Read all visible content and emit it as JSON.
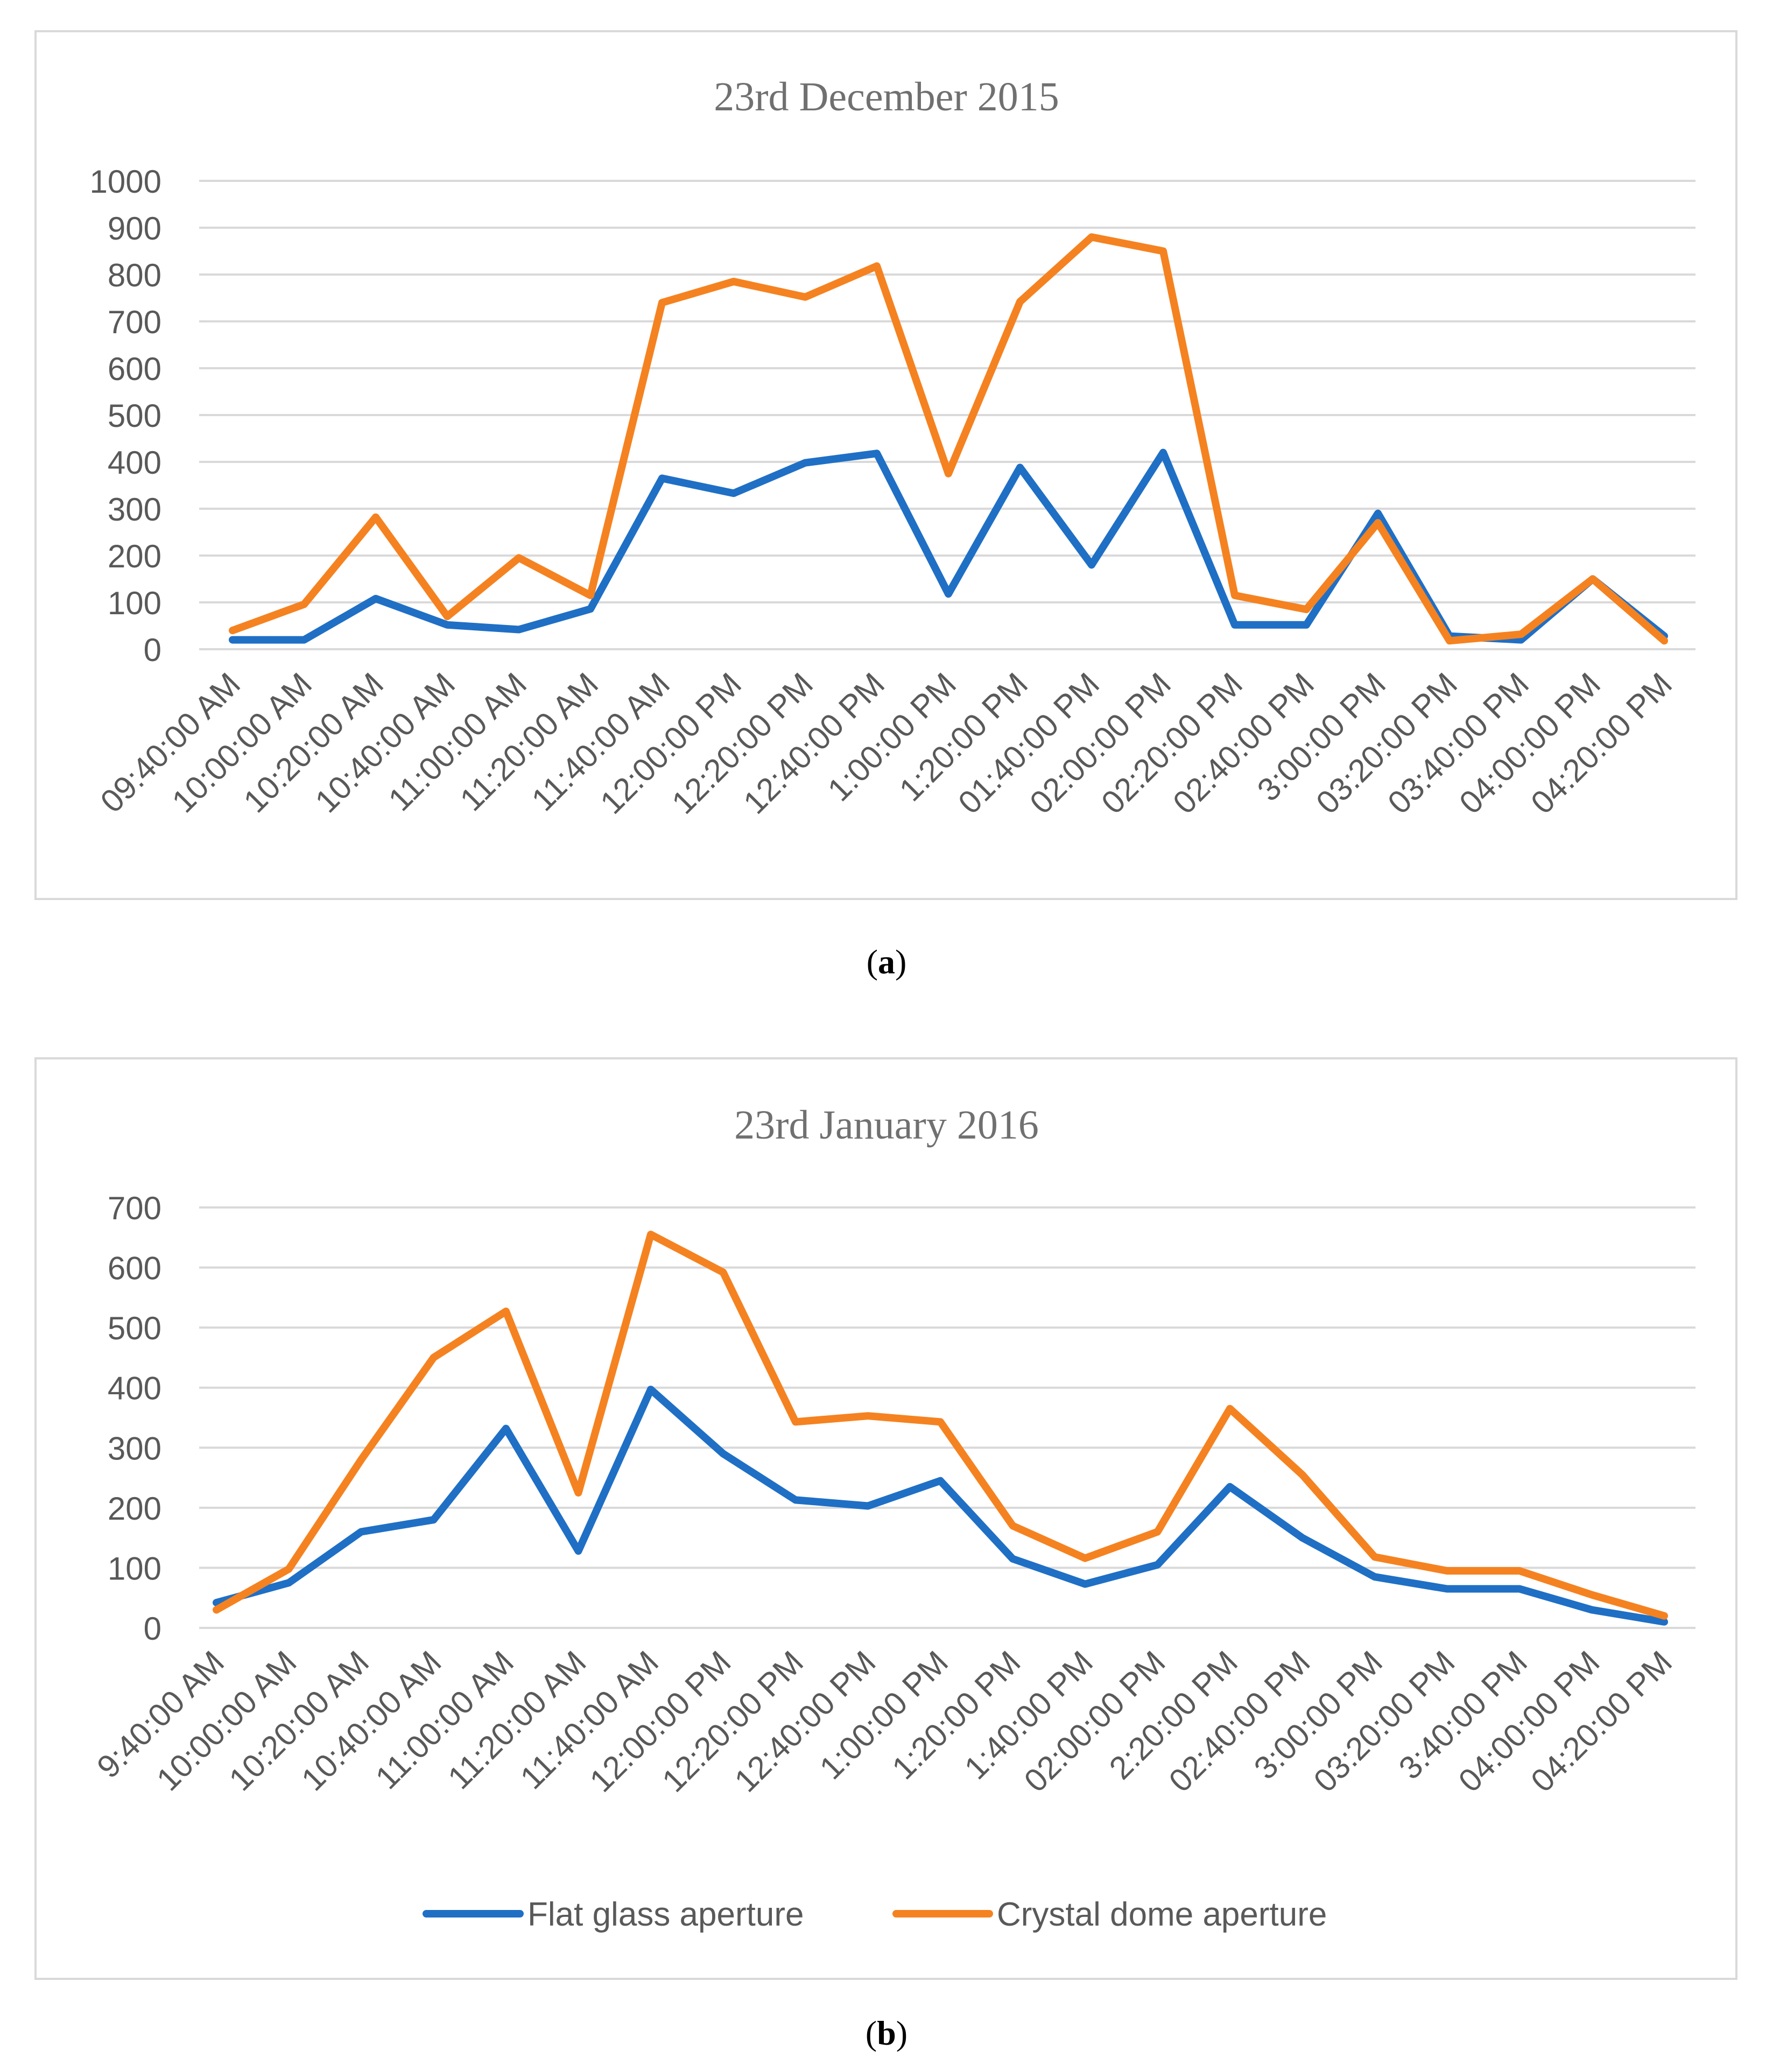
{
  "chart_data": [
    {
      "type": "line",
      "title": "23rd December 2015",
      "xlabel": "",
      "ylabel": "",
      "ylim": [
        0,
        1000
      ],
      "yticks": [
        0,
        100,
        200,
        300,
        400,
        500,
        600,
        700,
        800,
        900,
        1000
      ],
      "categories": [
        "09:40:00 AM",
        "10:00:00 AM",
        "10:20:00 AM",
        "10:40:00 AM",
        "11:00:00 AM",
        "11:20:00 AM",
        "11:40:00 AM",
        "12:00:00 PM",
        "12:20:00 PM",
        "12:40:00 PM",
        "1:00:00 PM",
        "1:20:00 PM",
        "01:40:00 PM",
        "02:00:00 PM",
        "02:20:00 PM",
        "02:40:00 PM",
        "3:00:00 PM",
        "03:20:00 PM",
        "03:40:00 PM",
        "04:00:00 PM",
        "04:20:00 PM"
      ],
      "series": [
        {
          "name": "Flat glass aperture",
          "color": "#1f6fc5",
          "values": [
            20,
            20,
            108,
            52,
            42,
            86,
            365,
            333,
            398,
            418,
            118,
            388,
            180,
            420,
            52,
            52,
            290,
            28,
            20,
            150,
            28
          ]
        },
        {
          "name": "Crystal dome aperture",
          "color": "#f58220",
          "values": [
            40,
            96,
            282,
            70,
            195,
            115,
            740,
            785,
            752,
            818,
            375,
            742,
            880,
            850,
            115,
            85,
            270,
            18,
            32,
            150,
            18
          ]
        }
      ],
      "caption_label": "a"
    },
    {
      "type": "line",
      "title": "23rd  January 2016",
      "xlabel": "",
      "ylabel": "",
      "ylim": [
        0,
        700
      ],
      "yticks": [
        0,
        100,
        200,
        300,
        400,
        500,
        600,
        700
      ],
      "categories": [
        "9:40:00 AM",
        "10:00:00 AM",
        "10:20:00 AM",
        "10:40:00 AM",
        "11:00:00 AM",
        "11:20:00 AM",
        "11:40:00 AM",
        "12:00:00 PM",
        "12:20:00 PM",
        "12:40:00 PM",
        "1:00:00 PM",
        "1:20:00 PM",
        "1:40:00 PM",
        "02:00:00 PM",
        "2:20:00 PM",
        "02:40:00 PM",
        "3:00:00 PM",
        "03:20:00 PM",
        "3:40:00 PM",
        "04:00:00 PM",
        "04:20:00 PM"
      ],
      "series": [
        {
          "name": "Flat glass aperture",
          "color": "#1f6fc5",
          "values": [
            42,
            75,
            160,
            180,
            332,
            128,
            397,
            290,
            213,
            203,
            245,
            115,
            73,
            105,
            235,
            150,
            85,
            65,
            65,
            30,
            10
          ]
        },
        {
          "name": "Crystal dome aperture",
          "color": "#f58220",
          "values": [
            30,
            98,
            280,
            450,
            527,
            225,
            655,
            592,
            343,
            353,
            343,
            170,
            116,
            160,
            365,
            255,
            118,
            95,
            95,
            55,
            20
          ]
        }
      ],
      "legend": [
        "Flat glass aperture",
        "Crystal dome aperture"
      ],
      "legend_position": "bottom-center",
      "caption_label": "b"
    }
  ]
}
